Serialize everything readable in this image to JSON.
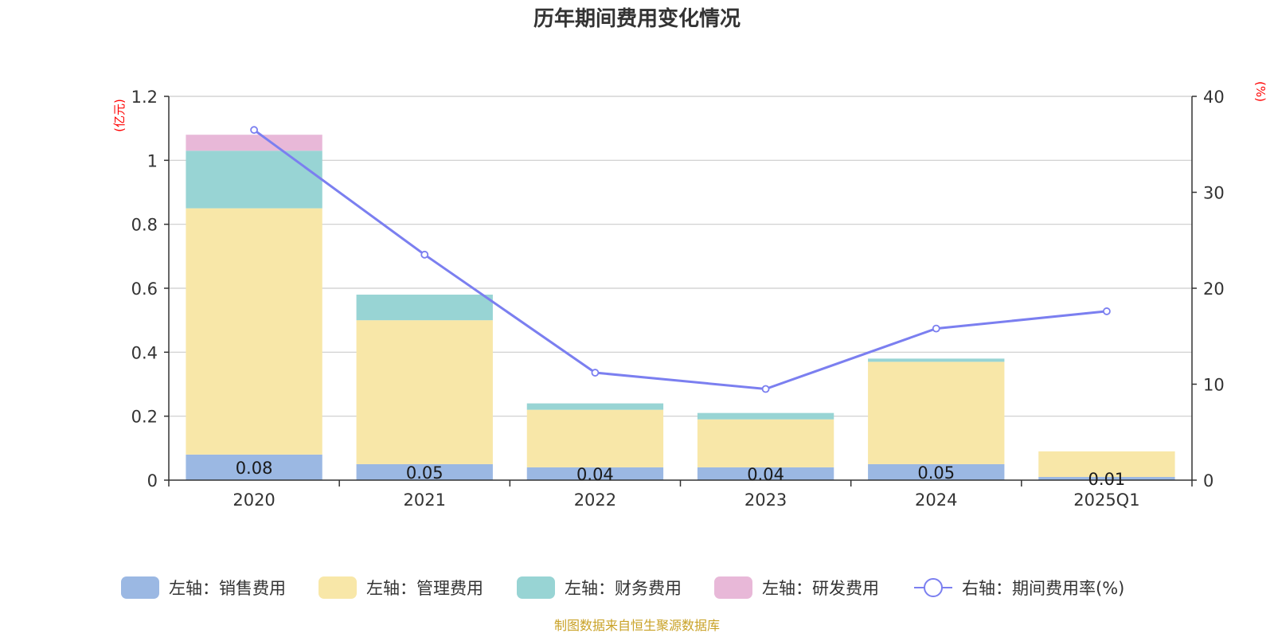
{
  "chart_data": {
    "type": "bar",
    "title": "历年期间费用变化情况",
    "categories": [
      "2020",
      "2021",
      "2022",
      "2023",
      "2024",
      "2025Q1"
    ],
    "y_left": {
      "unit": "(亿元)",
      "ylim": [
        0,
        1.2
      ],
      "ticks": [
        "0",
        "0.2",
        "0.4",
        "0.6",
        "0.8",
        "1",
        "1.2"
      ]
    },
    "y_right": {
      "unit": "(%)",
      "ylim": [
        0,
        40
      ],
      "ticks": [
        "0",
        "10",
        "20",
        "30",
        "40"
      ]
    },
    "grid": true,
    "legend_position": "bottom",
    "series": [
      {
        "name": "左轴：销售费用",
        "type": "bar",
        "axis": "left",
        "color": "#9bb8e3",
        "values": [
          0.08,
          0.05,
          0.04,
          0.04,
          0.05,
          0.01
        ],
        "labels": [
          "0.08",
          "0.05",
          "0.04",
          "0.04",
          "0.05",
          "0.01"
        ]
      },
      {
        "name": "左轴：管理费用",
        "type": "bar",
        "axis": "left",
        "color": "#f8e7a8",
        "values": [
          0.77,
          0.45,
          0.18,
          0.15,
          0.32,
          0.08
        ]
      },
      {
        "name": "左轴：财务费用",
        "type": "bar",
        "axis": "left",
        "color": "#98d4d4",
        "values": [
          0.18,
          0.08,
          0.02,
          0.02,
          0.01,
          0.0
        ]
      },
      {
        "name": "左轴：研发费用",
        "type": "bar",
        "axis": "left",
        "color": "#e8b8d8",
        "values": [
          0.05,
          0.0,
          0.0,
          0.0,
          0.0,
          0.0
        ]
      },
      {
        "name": "右轴：期间费用率(%)",
        "type": "line",
        "axis": "right",
        "color": "#7b7ff0",
        "values": [
          36.5,
          23.5,
          11.2,
          9.5,
          15.8,
          17.6
        ]
      }
    ],
    "source": "制图数据来自恒生聚源数据库"
  }
}
